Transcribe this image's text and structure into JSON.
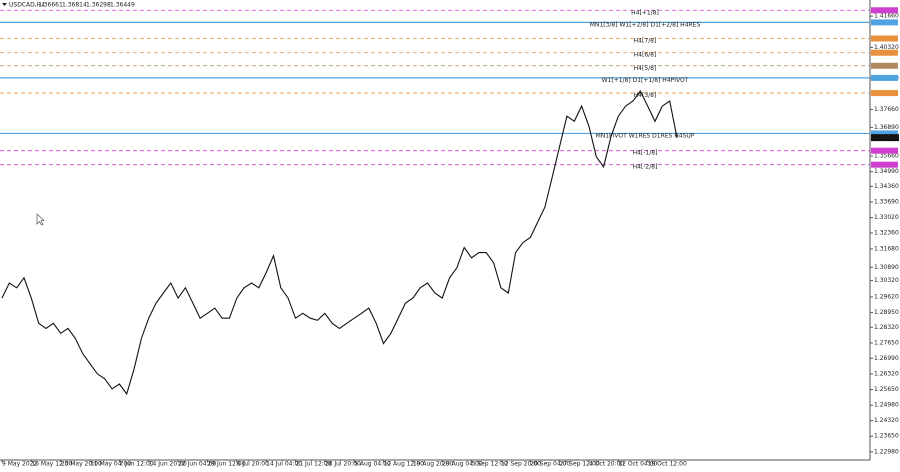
{
  "chart_data": {
    "type": "line",
    "header": {
      "symbol": "USDCAD,H4",
      "ohlc": [
        "1.36661",
        "1.36814",
        "1.36298",
        "1.36449"
      ]
    },
    "color": "#111111",
    "categories": [
      "9 May 2022",
      null,
      null,
      null,
      "16 May 12:00",
      null,
      null,
      null,
      "23 May 20:00",
      null,
      null,
      null,
      "31 May 04:00",
      null,
      null,
      null,
      "7 Jun 12:00",
      null,
      null,
      null,
      "14 Jun 20:00",
      null,
      null,
      null,
      "22 Jun 04:00",
      null,
      null,
      null,
      "29 Jun 12:00",
      null,
      null,
      null,
      "6 Jul 20:00",
      null,
      null,
      null,
      "14 Jul 04:00",
      null,
      null,
      null,
      "21 Jul 12:00",
      null,
      null,
      null,
      "28 Jul 20:00",
      null,
      null,
      null,
      "5 Aug 04:00",
      null,
      null,
      null,
      "12 Aug 12:00",
      null,
      null,
      null,
      "19 Aug 20:00",
      null,
      null,
      null,
      "29 Aug 04:00",
      null,
      null,
      null,
      "5 Sep 12:00",
      null,
      null,
      null,
      "12 Sep 20:00",
      null,
      null,
      null,
      "20 Sep 04:00",
      null,
      null,
      null,
      "27 Sep 12:00",
      null,
      null,
      null,
      "4 Oct 20:00",
      null,
      null,
      null,
      "12 Oct 04:00",
      null,
      null,
      null,
      "19 Oct 12:00",
      null,
      null,
      null,
      null
    ],
    "values": [
      1.2957,
      1.3022,
      1.3001,
      1.3044,
      1.2957,
      1.2849,
      1.2827,
      1.2849,
      1.2806,
      1.2827,
      1.2784,
      1.2719,
      1.2676,
      1.2632,
      1.2611,
      1.2568,
      1.2589,
      1.2546,
      1.2654,
      1.2784,
      1.2871,
      1.2936,
      1.2979,
      1.3022,
      1.2957,
      1.3001,
      1.2936,
      1.2871,
      1.2892,
      1.2914,
      1.2871,
      1.2871,
      1.2957,
      1.3001,
      1.3022,
      1.3001,
      1.3065,
      1.3139,
      1.3001,
      1.2957,
      1.2871,
      1.2892,
      1.2871,
      1.2862,
      1.2892,
      1.2849,
      1.2827,
      1.2849,
      1.2871,
      1.2892,
      1.2914,
      1.2849,
      1.2762,
      1.2806,
      1.2871,
      1.2936,
      1.2957,
      1.3001,
      1.3022,
      1.2979,
      1.2957,
      1.3044,
      1.3087,
      1.3174,
      1.313,
      1.3152,
      1.3152,
      1.3109,
      1.3001,
      1.2979,
      1.3152,
      1.3195,
      1.3217,
      1.3282,
      1.3347,
      1.3477,
      1.3607,
      1.3737,
      1.3715,
      1.378,
      1.3693,
      1.3563,
      1.352,
      1.365,
      1.3737,
      1.378,
      1.3802,
      1.3845,
      1.378,
      1.3715,
      1.378,
      1.3802,
      1.3645
    ],
    "ylim": [
      1.2263,
      1.4235
    ],
    "yticks": [
      {
        "value": 1.2298,
        "label": "1.22980"
      },
      {
        "value": 1.2365,
        "label": "1.23650"
      },
      {
        "value": 1.2432,
        "label": "1.24320"
      },
      {
        "value": 1.2498,
        "label": "1.24980"
      },
      {
        "value": 1.2565,
        "label": "1.25650"
      },
      {
        "value": 1.2632,
        "label": "1.26320"
      },
      {
        "value": 1.2699,
        "label": "1.26990"
      },
      {
        "value": 1.2765,
        "label": "1.27650"
      },
      {
        "value": 1.2832,
        "label": "1.28320"
      },
      {
        "value": 1.2895,
        "label": "1.28950"
      },
      {
        "value": 1.2962,
        "label": "1.29620"
      },
      {
        "value": 1.3032,
        "label": "1.30320"
      },
      {
        "value": 1.3089,
        "label": "1.30890"
      },
      {
        "value": 1.3168,
        "label": "1.31680"
      },
      {
        "value": 1.3236,
        "label": "1.32360"
      },
      {
        "value": 1.3302,
        "label": "1.33020"
      },
      {
        "value": 1.3369,
        "label": "1.33690"
      },
      {
        "value": 1.3436,
        "label": "1.34360"
      },
      {
        "value": 1.3499,
        "label": "1.34990"
      },
      {
        "value": 1.3566,
        "label": "1.35660"
      },
      {
        "value": 1.3689,
        "label": "1.36890"
      },
      {
        "value": 1.3766,
        "label": "1.37660"
      },
      {
        "value": 1.3899,
        "label": "1.38990"
      },
      {
        "value": 1.4032,
        "label": "1.40320"
      },
      {
        "value": 1.4166,
        "label": "1.41660"
      }
    ],
    "levels": [
      {
        "label": "H4[+1/8]",
        "value": 1.4191,
        "color": "#d040d0",
        "dashed": true
      },
      {
        "label": "MN1[3/8] W1[+2/8] D1[+2/8] H4RES",
        "value": 1.4139,
        "color": "#4fa3e0",
        "dashed": false
      },
      {
        "label": "H4[7/8]",
        "value": 1.407,
        "color": "#e8903c",
        "dashed": true
      },
      {
        "label": "H4[6/8]",
        "value": 1.4009,
        "color": "#e8903c",
        "dashed": true
      },
      {
        "label": "H4[5/8]",
        "value": 1.3953,
        "color": "#b08a60",
        "dashed": true
      },
      {
        "label": "W1[+1/8] D1[+1/8] H4PIVOT",
        "value": 1.3901,
        "color": "#4fa3e0",
        "dashed": false
      },
      {
        "label": "H4[3/8]",
        "value": 1.3836,
        "color": "#e8903c",
        "dashed": true
      },
      {
        "label": "MN1PIVOT W1RES D1RES H4SUP",
        "value": 1.3663,
        "color": "#4fa3e0",
        "dashed": false
      },
      {
        "label": "H4[-1/8]",
        "value": 1.3589,
        "color": "#d040d0",
        "dashed": true
      },
      {
        "label": "H4[-2/8]",
        "value": 1.3529,
        "color": "#d040d0",
        "dashed": true
      }
    ]
  }
}
